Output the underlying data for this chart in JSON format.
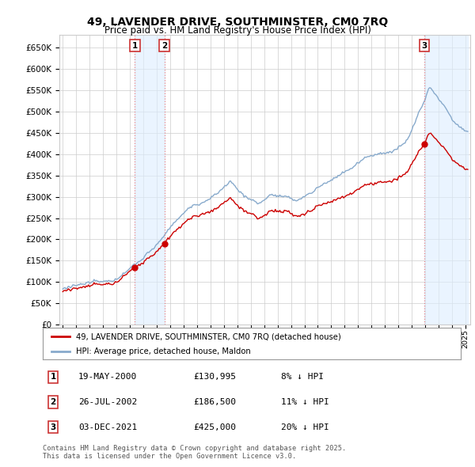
{
  "title": "49, LAVENDER DRIVE, SOUTHMINSTER, CM0 7RQ",
  "subtitle": "Price paid vs. HM Land Registry's House Price Index (HPI)",
  "legend_label_red": "49, LAVENDER DRIVE, SOUTHMINSTER, CM0 7RQ (detached house)",
  "legend_label_blue": "HPI: Average price, detached house, Maldon",
  "footer": "Contains HM Land Registry data © Crown copyright and database right 2025.\nThis data is licensed under the Open Government Licence v3.0.",
  "transactions": [
    {
      "num": 1,
      "date": "19-MAY-2000",
      "price": 130995,
      "note": "8% ↓ HPI",
      "x": 2000.38
    },
    {
      "num": 2,
      "date": "26-JUL-2002",
      "price": 186500,
      "note": "11% ↓ HPI",
      "x": 2002.57
    },
    {
      "num": 3,
      "date": "03-DEC-2021",
      "price": 425000,
      "note": "20% ↓ HPI",
      "x": 2021.92
    }
  ],
  "ylim": [
    0,
    680000
  ],
  "yticks": [
    0,
    50000,
    100000,
    150000,
    200000,
    250000,
    300000,
    350000,
    400000,
    450000,
    500000,
    550000,
    600000,
    650000
  ],
  "background_color": "#ffffff",
  "plot_bg_color": "#ffffff",
  "grid_color": "#cccccc",
  "red_color": "#cc0000",
  "blue_color": "#88aacc",
  "annotation_box_color": "#cc3333",
  "shading_color": "#ddeeff",
  "vline_color": "#ee8888"
}
